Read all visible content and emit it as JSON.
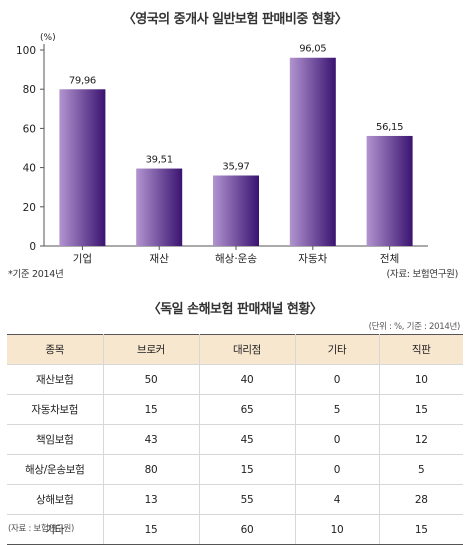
{
  "chart_data": {
    "type": "bar",
    "title": "〈영국의 중개사 일반보험 판매비중 현황〉",
    "ylabel": "(%)",
    "ylim": [
      0,
      100
    ],
    "yticks": [
      "0",
      "20",
      "40",
      "60",
      "80",
      "100"
    ],
    "categories": [
      "기업",
      "재산",
      "해상·운송",
      "자동차",
      "전체"
    ],
    "values": [
      79.96,
      39.51,
      35.97,
      96.05,
      56.15
    ],
    "value_labels": [
      "79,96",
      "39,51",
      "35,97",
      "96,05",
      "56,15"
    ],
    "grid": false,
    "colors": {
      "bar_light": "#b294d0",
      "bar_dark": "#3a1370"
    },
    "note": "*기준 2014년",
    "source": "(자료: 보험연구원)"
  },
  "table": {
    "title": "〈독일 손해보험 판매채널 현황〉",
    "unit": "(단위 : %, 기준 : 2014년)",
    "headers": [
      "종목",
      "브로커",
      "대리점",
      "기타",
      "직판"
    ],
    "rows": [
      [
        "재산보험",
        "50",
        "40",
        "0",
        "10"
      ],
      [
        "자동차보험",
        "15",
        "65",
        "5",
        "15"
      ],
      [
        "책임보험",
        "43",
        "45",
        "0",
        "12"
      ],
      [
        "해상/운송보험",
        "80",
        "15",
        "0",
        "5"
      ],
      [
        "상해보험",
        "13",
        "55",
        "4",
        "28"
      ],
      [
        "기타",
        "15",
        "60",
        "10",
        "15"
      ]
    ],
    "source": "(자료 : 보험연구원)",
    "header_color": "#f7e7cf"
  }
}
